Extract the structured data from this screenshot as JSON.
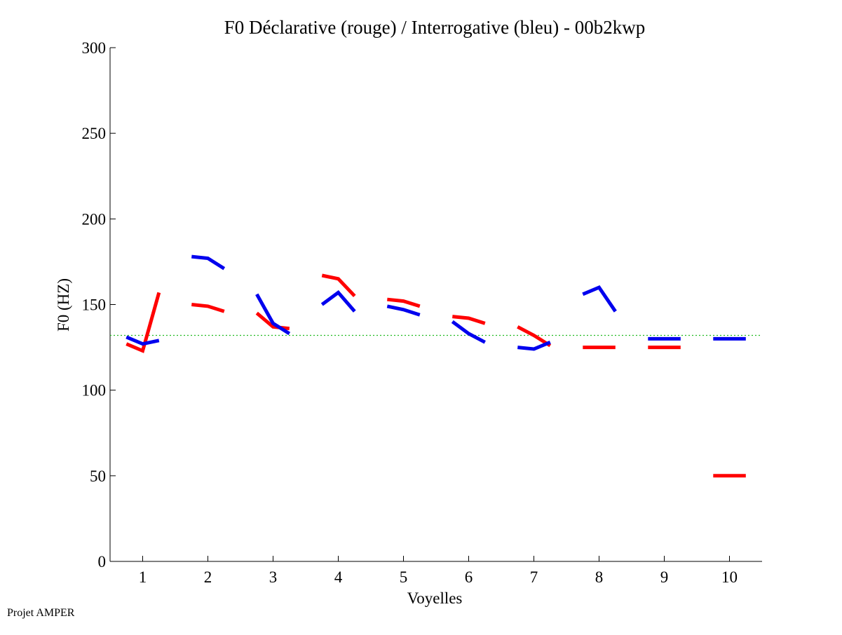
{
  "chart_data": {
    "type": "line",
    "title": "F0 Déclarative (rouge) / Interrogative (bleu) - 00b2kwp",
    "xlabel": "Voyelles",
    "ylabel": "F0 (HZ)",
    "ylim": [
      0,
      300
    ],
    "xlim": [
      0.5,
      10.5
    ],
    "y_ticks": [
      0,
      50,
      100,
      150,
      200,
      250,
      300
    ],
    "x_ticks": [
      1,
      2,
      3,
      4,
      5,
      6,
      7,
      8,
      9,
      10
    ],
    "x_tick_labels": [
      "1",
      "2",
      "3",
      "4",
      "5",
      "6",
      "7",
      "8",
      "9",
      "10"
    ],
    "y_tick_labels": [
      "0",
      "50",
      "100",
      "150",
      "200",
      "250",
      "300"
    ],
    "grid": false,
    "reference_line": {
      "y": 132,
      "style": "dotted",
      "color": "#22bb22"
    },
    "series": [
      {
        "name": "Déclarative (rouge)",
        "color": "#ff0000",
        "segments": [
          {
            "x": [
              0.75,
              1.0,
              1.25
            ],
            "y": [
              127,
              123,
              157
            ]
          },
          {
            "x": [
              1.75,
              2.0,
              2.25
            ],
            "y": [
              150,
              149,
              146
            ]
          },
          {
            "x": [
              2.75,
              3.0,
              3.25
            ],
            "y": [
              145,
              137,
              136
            ]
          },
          {
            "x": [
              3.75,
              4.0,
              4.25
            ],
            "y": [
              167,
              165,
              155
            ]
          },
          {
            "x": [
              4.75,
              5.0,
              5.25
            ],
            "y": [
              153,
              152,
              149
            ]
          },
          {
            "x": [
              5.75,
              6.0,
              6.25
            ],
            "y": [
              143,
              142,
              139
            ]
          },
          {
            "x": [
              6.75,
              7.0,
              7.25
            ],
            "y": [
              137,
              132,
              126
            ]
          },
          {
            "x": [
              7.75,
              8.0,
              8.25
            ],
            "y": [
              125,
              125,
              125
            ]
          },
          {
            "x": [
              8.75,
              9.0,
              9.25
            ],
            "y": [
              125,
              125,
              125
            ]
          },
          {
            "x": [
              9.75,
              10.0,
              10.25
            ],
            "y": [
              50,
              50,
              50
            ]
          }
        ]
      },
      {
        "name": "Interrogative (bleu)",
        "color": "#0000ee",
        "segments": [
          {
            "x": [
              0.75,
              1.0,
              1.25
            ],
            "y": [
              131,
              127,
              129
            ]
          },
          {
            "x": [
              1.75,
              2.0,
              2.25
            ],
            "y": [
              178,
              177,
              171
            ]
          },
          {
            "x": [
              2.75,
              3.0,
              3.25
            ],
            "y": [
              156,
              139,
              133
            ]
          },
          {
            "x": [
              3.75,
              4.0,
              4.25
            ],
            "y": [
              150,
              157,
              146
            ]
          },
          {
            "x": [
              4.75,
              5.0,
              5.25
            ],
            "y": [
              149,
              147,
              144
            ]
          },
          {
            "x": [
              5.75,
              6.0,
              6.25
            ],
            "y": [
              140,
              133,
              128
            ]
          },
          {
            "x": [
              6.75,
              7.0,
              7.25
            ],
            "y": [
              125,
              124,
              128
            ]
          },
          {
            "x": [
              7.75,
              8.0,
              8.25
            ],
            "y": [
              156,
              160,
              146
            ]
          },
          {
            "x": [
              8.75,
              9.0,
              9.25
            ],
            "y": [
              130,
              130,
              130
            ]
          },
          {
            "x": [
              9.75,
              10.0,
              10.25
            ],
            "y": [
              130,
              130,
              130
            ]
          }
        ]
      }
    ]
  },
  "footer": {
    "credit": "Projet AMPER"
  }
}
